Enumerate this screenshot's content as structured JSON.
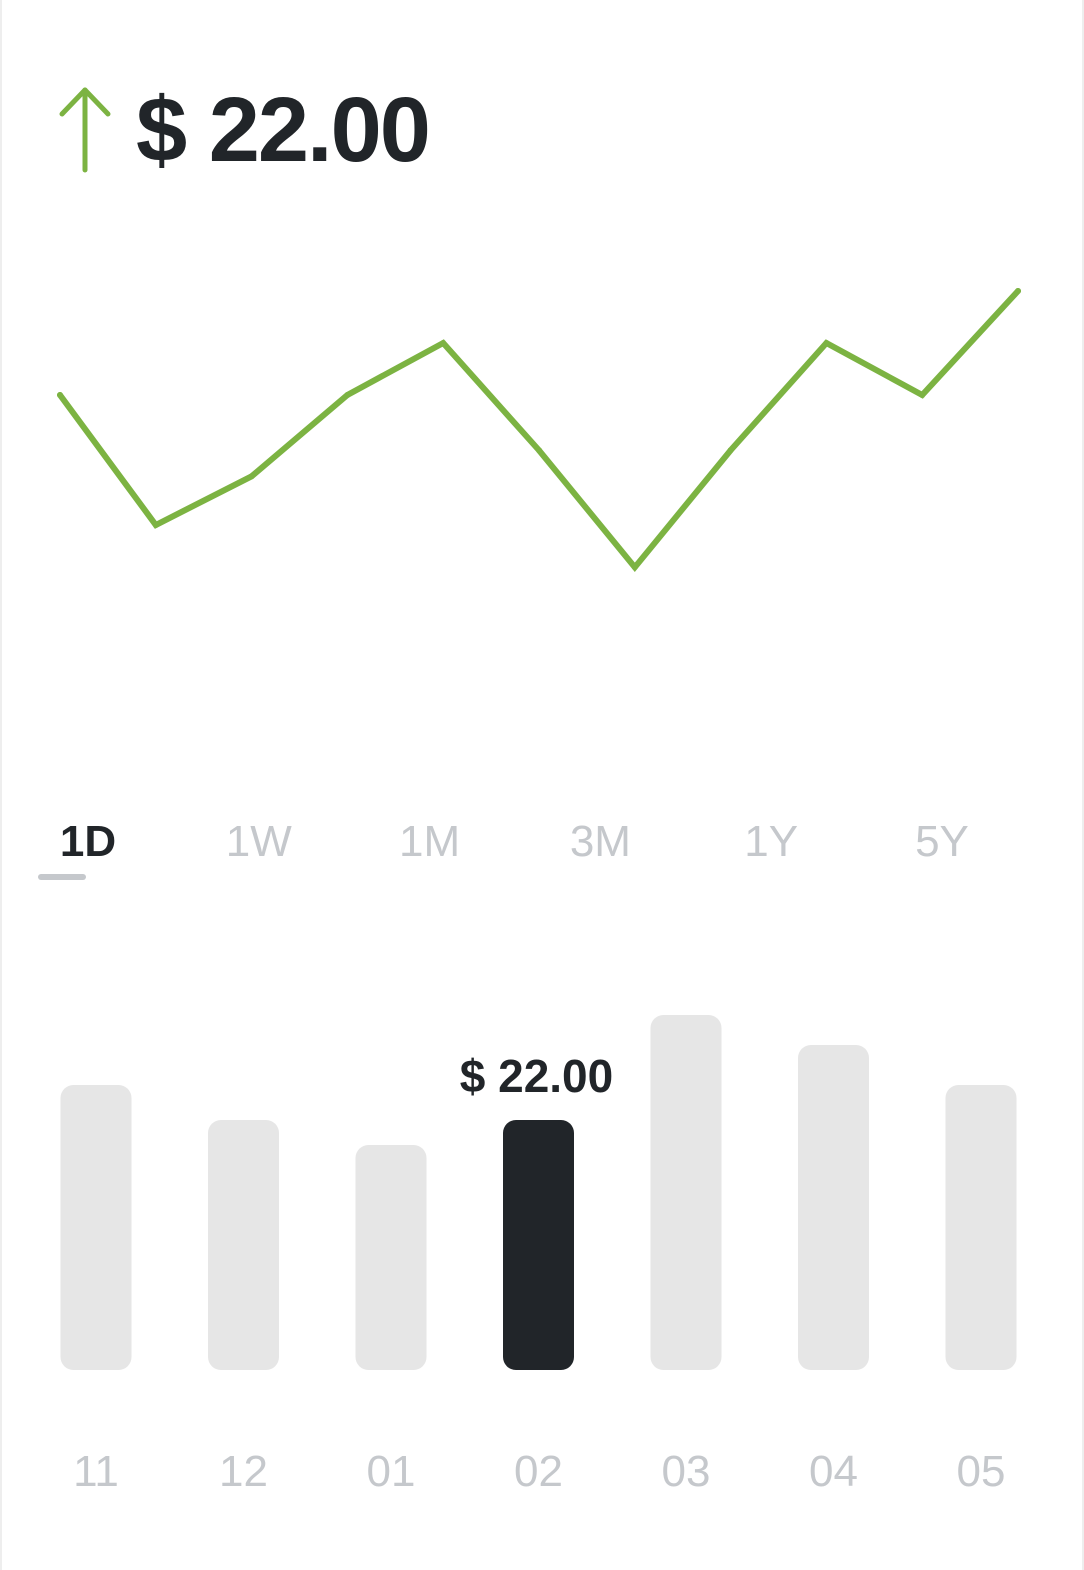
{
  "header": {
    "price": "$ 22.00",
    "trend_icon": "up-arrow-icon",
    "trend_color": "#7cb342"
  },
  "range_tabs": {
    "items": [
      "1D",
      "1W",
      "1M",
      "3M",
      "1Y",
      "5Y"
    ],
    "active": "1D"
  },
  "chart_data": [
    {
      "type": "line",
      "color": "#7cb342",
      "y": [
        20.0,
        16.0,
        17.5,
        20.0,
        21.6,
        18.3,
        14.7,
        18.3,
        21.6,
        20.0,
        23.2
      ],
      "ylim": [
        10,
        26
      ]
    },
    {
      "type": "bar",
      "categories": [
        "11",
        "12",
        "01",
        "02",
        "03",
        "04",
        "05"
      ],
      "values": [
        28.5,
        25.0,
        22.5,
        25.0,
        35.5,
        32.5,
        28.5
      ],
      "ylim": [
        0,
        40
      ],
      "selected_category": "02",
      "selected_label": "$ 22.00",
      "bar_color": "#e6e6e6",
      "selected_color": "#212529"
    }
  ]
}
